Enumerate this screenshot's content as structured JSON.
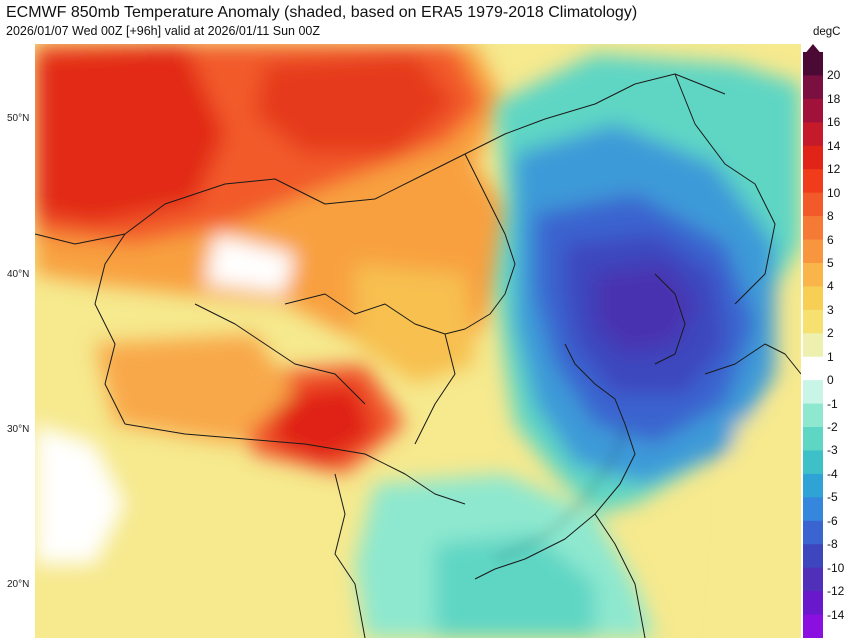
{
  "header": {
    "title": "ECMWF 850mb Temperature Anomaly (shaded, based on ERA5 1979-2018 Climatology)",
    "subtitle": "2026/01/07 Wed 00Z [+96h] valid at 2026/01/11 Sun 00Z"
  },
  "map": {
    "lat_labels": [
      "50°N",
      "40°N",
      "30°N",
      "20°N"
    ]
  },
  "colorbar": {
    "unit": "degC",
    "levels": [
      "20",
      "18",
      "16",
      "14",
      "12",
      "10",
      "8",
      "6",
      "5",
      "4",
      "3",
      "2",
      "1",
      "0",
      "-1",
      "-2",
      "-3",
      "-4",
      "-5",
      "-6",
      "-8",
      "-10",
      "-12",
      "-14"
    ],
    "colors": [
      "#4a0a33",
      "#7a1040",
      "#a0123a",
      "#c41a2a",
      "#e02418",
      "#f03c1a",
      "#f25a2a",
      "#f57a35",
      "#f89640",
      "#f9b44a",
      "#f7cf55",
      "#f5e070",
      "#eef0b0",
      "#ffffff",
      "#c8f5e6",
      "#8ee8cf",
      "#5fd6c4",
      "#3ec0c8",
      "#2fa3d6",
      "#3586dd",
      "#3a64cf",
      "#3e46be",
      "#5030b8",
      "#6a18cc",
      "#8a10e0"
    ]
  },
  "colors": {
    "warm_core": "#e83a1c",
    "cold_core": "#3f3fb2",
    "neutral": "#ffffff"
  }
}
